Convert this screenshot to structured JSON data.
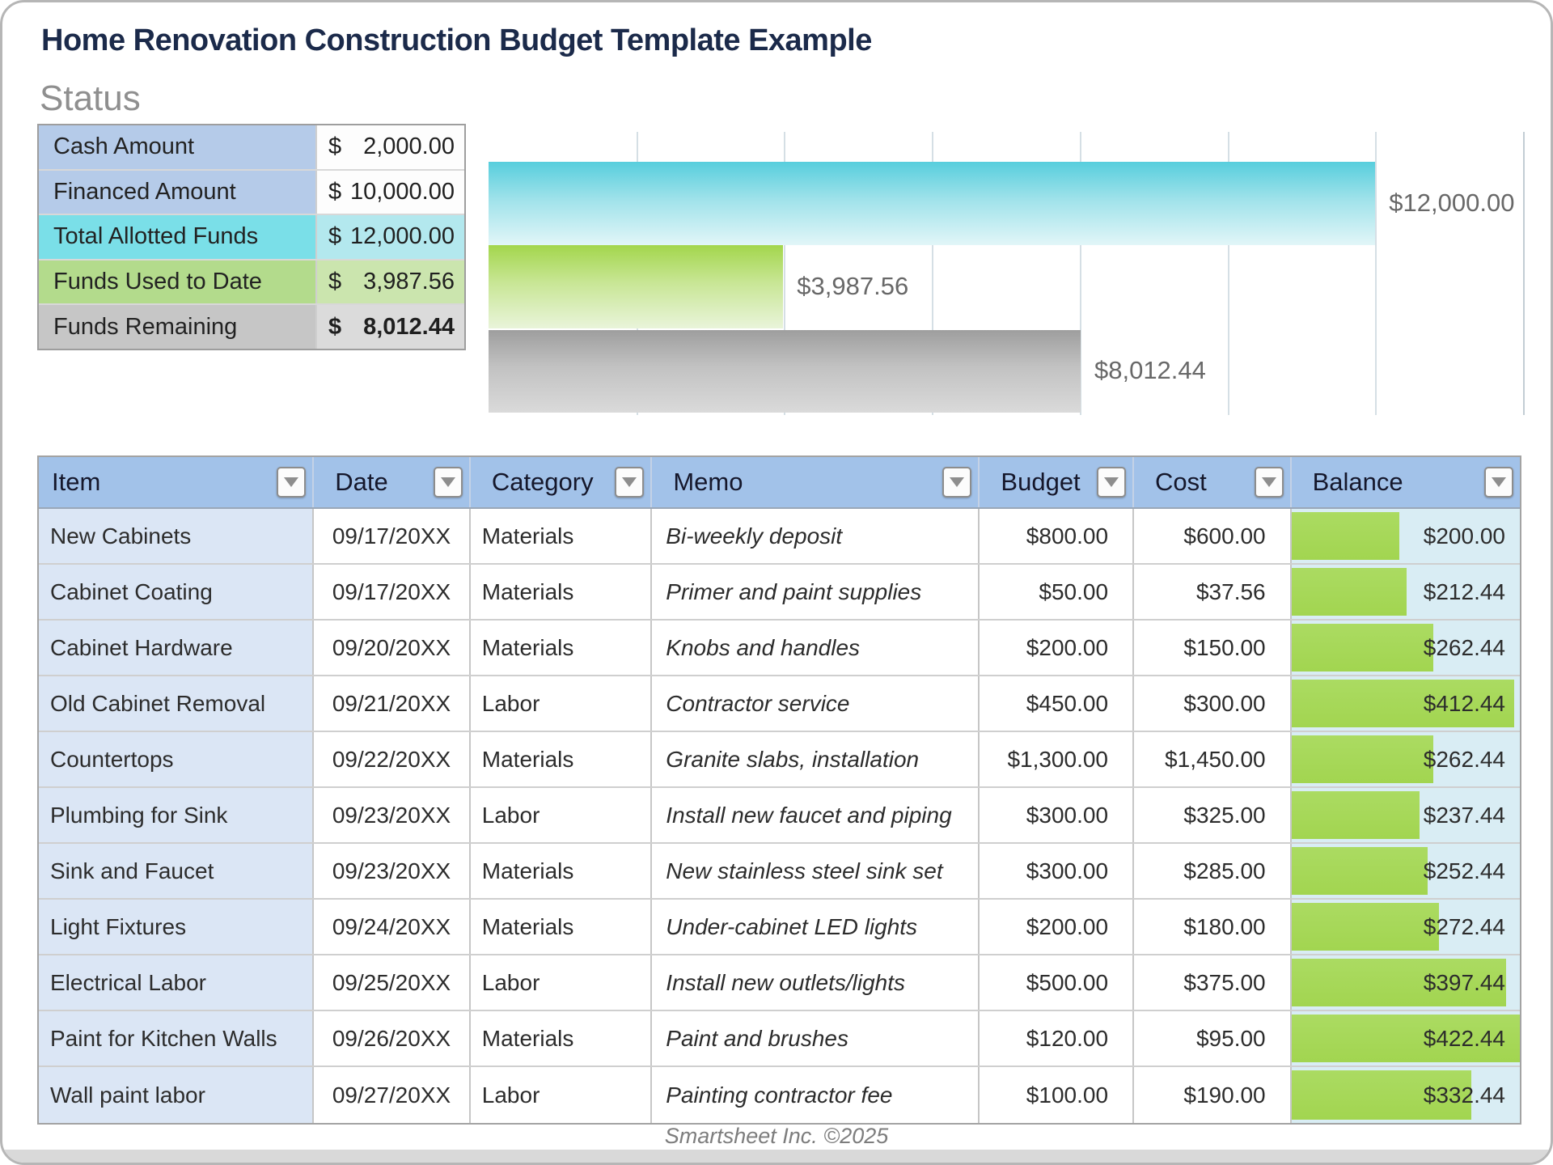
{
  "page": {
    "title": "Home Renovation Construction Budget Template Example",
    "status_heading": "Status",
    "footer": "Smartsheet Inc. ©2025"
  },
  "status_table": {
    "rows": [
      {
        "label": "Cash Amount",
        "currency": "$",
        "amount": "2,000.00",
        "style": "blue",
        "bold": false
      },
      {
        "label": "Financed Amount",
        "currency": "$",
        "amount": "10,000.00",
        "style": "blue",
        "bold": false
      },
      {
        "label": "Total Allotted Funds",
        "currency": "$",
        "amount": "12,000.00",
        "style": "cyan",
        "bold": false
      },
      {
        "label": "Funds Used to Date",
        "currency": "$",
        "amount": "3,987.56",
        "style": "green",
        "bold": false
      },
      {
        "label": "Funds Remaining",
        "currency": "$",
        "amount": "8,012.44",
        "style": "gray",
        "bold": true
      }
    ]
  },
  "chart_data": {
    "type": "bar",
    "orientation": "horizontal",
    "title": "",
    "legend": "none",
    "grid": true,
    "xlim": [
      0,
      14000
    ],
    "gridline_step": 2000,
    "series": [
      {
        "name": "Total Allotted Funds",
        "value": 12000,
        "label": "$12,000.00",
        "color_top": "#57cedd",
        "color_mid": "#9fe2ea",
        "color_bottom": "#e2f6f8"
      },
      {
        "name": "Funds Used to Date",
        "value": 3987.56,
        "label": "$3,987.56",
        "color_top": "#a3d64c",
        "color_mid": "#c8e695",
        "color_bottom": "#e9f4da"
      },
      {
        "name": "Funds Remaining",
        "value": 8012.44,
        "label": "$8,012.44",
        "color_top": "#9e9e9e",
        "color_mid": "#c2c2c2",
        "color_bottom": "#dadada"
      }
    ]
  },
  "table": {
    "columns": [
      {
        "label": "Item"
      },
      {
        "label": "Date"
      },
      {
        "label": "Category"
      },
      {
        "label": "Memo"
      },
      {
        "label": "Budget"
      },
      {
        "label": "Cost"
      },
      {
        "label": "Balance"
      }
    ],
    "balance_bar_max": 422.44,
    "balance_bar_color_top": "#abdb62",
    "balance_bar_color_bottom": "#a2d550",
    "rows": [
      {
        "item": "New Cabinets",
        "date": "09/17/20XX",
        "category": "Materials",
        "memo": "Bi-weekly deposit",
        "budget": "$800.00",
        "cost": "$600.00",
        "balance": "$200.00",
        "balance_value": 200.0
      },
      {
        "item": "Cabinet Coating",
        "date": "09/17/20XX",
        "category": "Materials",
        "memo": "Primer and paint supplies",
        "budget": "$50.00",
        "cost": "$37.56",
        "balance": "$212.44",
        "balance_value": 212.44
      },
      {
        "item": "Cabinet Hardware",
        "date": "09/20/20XX",
        "category": "Materials",
        "memo": "Knobs and handles",
        "budget": "$200.00",
        "cost": "$150.00",
        "balance": "$262.44",
        "balance_value": 262.44
      },
      {
        "item": "Old Cabinet Removal",
        "date": "09/21/20XX",
        "category": "Labor",
        "memo": "Contractor service",
        "budget": "$450.00",
        "cost": "$300.00",
        "balance": "$412.44",
        "balance_value": 412.44
      },
      {
        "item": "Countertops",
        "date": "09/22/20XX",
        "category": "Materials",
        "memo": "Granite slabs, installation",
        "budget": "$1,300.00",
        "cost": "$1,450.00",
        "balance": "$262.44",
        "balance_value": 262.44
      },
      {
        "item": "Plumbing for Sink",
        "date": "09/23/20XX",
        "category": "Labor",
        "memo": "Install new faucet and piping",
        "budget": "$300.00",
        "cost": "$325.00",
        "balance": "$237.44",
        "balance_value": 237.44
      },
      {
        "item": "Sink and Faucet",
        "date": "09/23/20XX",
        "category": "Materials",
        "memo": "New stainless steel sink set",
        "budget": "$300.00",
        "cost": "$285.00",
        "balance": "$252.44",
        "balance_value": 252.44
      },
      {
        "item": "Light Fixtures",
        "date": "09/24/20XX",
        "category": "Materials",
        "memo": "Under-cabinet LED lights",
        "budget": "$200.00",
        "cost": "$180.00",
        "balance": "$272.44",
        "balance_value": 272.44
      },
      {
        "item": "Electrical Labor",
        "date": "09/25/20XX",
        "category": "Labor",
        "memo": "Install new outlets/lights",
        "budget": "$500.00",
        "cost": "$375.00",
        "balance": "$397.44",
        "balance_value": 397.44
      },
      {
        "item": "Paint for Kitchen Walls",
        "date": "09/26/20XX",
        "category": "Materials",
        "memo": "Paint and brushes",
        "budget": "$120.00",
        "cost": "$95.00",
        "balance": "$422.44",
        "balance_value": 422.44
      },
      {
        "item": "Wall paint labor",
        "date": "09/27/20XX",
        "category": "Labor",
        "memo": "Painting contractor fee",
        "budget": "$100.00",
        "cost": "$190.00",
        "balance": "$332.44",
        "balance_value": 332.44
      }
    ]
  }
}
